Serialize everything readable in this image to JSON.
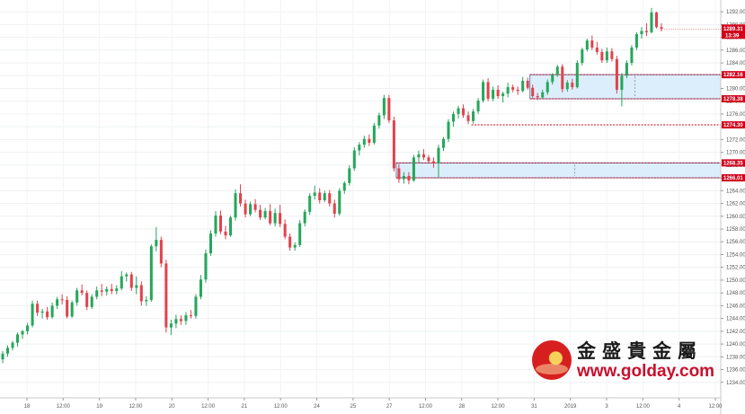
{
  "chart_data": {
    "type": "candlestick",
    "ylim": [
      1232,
      1293
    ],
    "y_ticks": [
      "1234.00",
      "1236.00",
      "1238.00",
      "1240.00",
      "1242.00",
      "1244.00",
      "1246.00",
      "1248.00",
      "1250.00",
      "1252.00",
      "1254.00",
      "1256.00",
      "1258.00",
      "1260.00",
      "1262.00",
      "1264.00",
      "1266.00",
      "1268.00",
      "1270.00",
      "1272.00",
      "1274.00",
      "1276.00",
      "1278.00",
      "1280.00",
      "1282.00",
      "1284.00",
      "1286.00",
      "1288.00",
      "1290.00",
      "1292.00"
    ],
    "x_ticks": [
      "18",
      "12:00",
      "19",
      "12:00",
      "20",
      "12:00",
      "21",
      "12:00",
      "24",
      "25",
      "27",
      "12:00",
      "28",
      "12:00",
      "31",
      "2019",
      "3",
      "12:00",
      "4",
      "12:00"
    ],
    "grid": true,
    "colors": {
      "up": "#26a65b",
      "down": "#e0434e",
      "zone_fill": "#dceefc",
      "zone_border": "#3c6e9e",
      "level_line": "#d0021b",
      "tag_red": "#d0021b",
      "tag_dark": "#7a1416"
    },
    "candles": [
      [
        1237.6,
        1238.9,
        1237.0,
        1238.5
      ],
      [
        1238.5,
        1239.8,
        1238.0,
        1239.4
      ],
      [
        1239.4,
        1240.5,
        1239.0,
        1240.2
      ],
      [
        1240.2,
        1241.8,
        1239.6,
        1241.5
      ],
      [
        1241.5,
        1242.2,
        1240.8,
        1242.0
      ],
      [
        1242.0,
        1243.3,
        1241.5,
        1242.9
      ],
      [
        1242.9,
        1246.8,
        1242.6,
        1246.3
      ],
      [
        1246.3,
        1246.8,
        1244.4,
        1244.9
      ],
      [
        1244.9,
        1245.5,
        1244.0,
        1245.1
      ],
      [
        1245.1,
        1245.8,
        1243.8,
        1244.2
      ],
      [
        1244.2,
        1246.5,
        1244.0,
        1246.0
      ],
      [
        1246.0,
        1247.4,
        1245.5,
        1247.0
      ],
      [
        1247.0,
        1247.8,
        1246.2,
        1246.9
      ],
      [
        1246.9,
        1247.5,
        1244.0,
        1244.3
      ],
      [
        1244.3,
        1246.8,
        1244.1,
        1246.5
      ],
      [
        1246.5,
        1248.8,
        1246.0,
        1248.4
      ],
      [
        1248.4,
        1249.3,
        1247.6,
        1248.0
      ],
      [
        1248.0,
        1248.4,
        1245.3,
        1245.8
      ],
      [
        1245.8,
        1247.8,
        1245.5,
        1247.4
      ],
      [
        1247.4,
        1249.0,
        1247.0,
        1248.4
      ],
      [
        1248.4,
        1249.4,
        1247.5,
        1248.2
      ],
      [
        1248.2,
        1249.0,
        1247.6,
        1248.6
      ],
      [
        1248.6,
        1249.4,
        1247.8,
        1248.3
      ],
      [
        1248.3,
        1249.2,
        1247.8,
        1248.7
      ],
      [
        1248.7,
        1251.4,
        1248.4,
        1250.6
      ],
      [
        1250.6,
        1251.2,
        1249.8,
        1250.9
      ],
      [
        1250.9,
        1251.3,
        1248.3,
        1248.8
      ],
      [
        1248.8,
        1250.6,
        1247.8,
        1249.2
      ],
      [
        1249.2,
        1249.8,
        1246.0,
        1246.7
      ],
      [
        1246.7,
        1247.5,
        1246.0,
        1246.9
      ],
      [
        1246.9,
        1255.6,
        1246.6,
        1255.3
      ],
      [
        1255.3,
        1258.3,
        1254.5,
        1256.3
      ],
      [
        1256.3,
        1256.8,
        1252.0,
        1252.6
      ],
      [
        1252.6,
        1253.2,
        1241.8,
        1242.6
      ],
      [
        1242.6,
        1243.8,
        1241.4,
        1243.2
      ],
      [
        1243.2,
        1244.6,
        1242.5,
        1243.9
      ],
      [
        1243.9,
        1244.5,
        1243.0,
        1243.6
      ],
      [
        1243.6,
        1245.0,
        1243.0,
        1244.5
      ],
      [
        1244.5,
        1245.3,
        1244.0,
        1244.4
      ],
      [
        1244.4,
        1247.8,
        1244.0,
        1247.4
      ],
      [
        1247.4,
        1250.8,
        1247.0,
        1250.1
      ],
      [
        1250.1,
        1254.8,
        1249.6,
        1254.2
      ],
      [
        1254.2,
        1257.8,
        1253.8,
        1257.3
      ],
      [
        1257.3,
        1260.8,
        1256.8,
        1260.1
      ],
      [
        1260.1,
        1260.9,
        1257.2,
        1257.6
      ],
      [
        1257.6,
        1258.5,
        1256.4,
        1257.0
      ],
      [
        1257.0,
        1260.1,
        1256.8,
        1259.8
      ],
      [
        1259.8,
        1264.2,
        1259.3,
        1263.6
      ],
      [
        1263.6,
        1265.0,
        1261.5,
        1262.0
      ],
      [
        1262.0,
        1262.6,
        1259.8,
        1260.3
      ],
      [
        1260.3,
        1262.3,
        1260.0,
        1261.9
      ],
      [
        1261.9,
        1262.7,
        1260.6,
        1261.0
      ],
      [
        1261.0,
        1261.8,
        1259.4,
        1259.8
      ],
      [
        1259.8,
        1261.3,
        1259.5,
        1260.8
      ],
      [
        1260.8,
        1261.9,
        1258.6,
        1258.9
      ],
      [
        1258.9,
        1261.2,
        1258.4,
        1260.5
      ],
      [
        1260.5,
        1261.8,
        1258.3,
        1258.8
      ],
      [
        1258.8,
        1259.5,
        1256.4,
        1256.8
      ],
      [
        1256.8,
        1257.3,
        1254.6,
        1255.1
      ],
      [
        1255.1,
        1255.9,
        1254.6,
        1255.5
      ],
      [
        1255.5,
        1259.4,
        1255.2,
        1258.9
      ],
      [
        1258.9,
        1261.1,
        1258.4,
        1260.7
      ],
      [
        1260.7,
        1263.6,
        1260.2,
        1263.2
      ],
      [
        1263.2,
        1264.8,
        1262.6,
        1263.7
      ],
      [
        1263.7,
        1264.4,
        1262.0,
        1262.5
      ],
      [
        1262.5,
        1264.0,
        1262.2,
        1263.6
      ],
      [
        1263.6,
        1264.1,
        1261.5,
        1262.0
      ],
      [
        1262.0,
        1262.6,
        1259.8,
        1260.4
      ],
      [
        1260.4,
        1264.4,
        1260.1,
        1264.0
      ],
      [
        1264.0,
        1265.5,
        1263.5,
        1265.2
      ],
      [
        1265.2,
        1268.0,
        1264.8,
        1267.5
      ],
      [
        1267.5,
        1270.8,
        1267.1,
        1270.3
      ],
      [
        1270.3,
        1271.6,
        1269.5,
        1271.2
      ],
      [
        1271.2,
        1272.6,
        1270.7,
        1272.1
      ],
      [
        1272.1,
        1272.8,
        1271.0,
        1271.5
      ],
      [
        1271.5,
        1274.6,
        1271.2,
        1274.2
      ],
      [
        1274.2,
        1276.2,
        1273.7,
        1275.8
      ],
      [
        1275.8,
        1279.0,
        1275.2,
        1278.5
      ],
      [
        1278.5,
        1279.0,
        1274.6,
        1275.0
      ],
      [
        1275.0,
        1275.6,
        1267.0,
        1267.5
      ],
      [
        1267.5,
        1268.2,
        1265.2,
        1265.8
      ],
      [
        1265.8,
        1266.9,
        1265.1,
        1266.3
      ],
      [
        1266.3,
        1266.9,
        1265.0,
        1265.6
      ],
      [
        1265.6,
        1269.6,
        1265.4,
        1269.2
      ],
      [
        1269.2,
        1270.3,
        1268.4,
        1269.7
      ],
      [
        1269.7,
        1270.5,
        1268.8,
        1269.2
      ],
      [
        1269.2,
        1269.6,
        1268.2,
        1268.6
      ],
      [
        1268.6,
        1269.2,
        1267.6,
        1268.3
      ],
      [
        1268.3,
        1271.2,
        1266.0,
        1270.7
      ],
      [
        1270.7,
        1272.4,
        1270.2,
        1272.1
      ],
      [
        1272.1,
        1275.2,
        1271.6,
        1274.8
      ],
      [
        1274.8,
        1276.4,
        1274.0,
        1276.0
      ],
      [
        1276.0,
        1277.3,
        1275.3,
        1276.9
      ],
      [
        1276.9,
        1277.5,
        1275.4,
        1275.8
      ],
      [
        1275.8,
        1276.4,
        1274.4,
        1274.9
      ],
      [
        1274.9,
        1276.8,
        1274.5,
        1276.4
      ],
      [
        1276.4,
        1278.5,
        1276.0,
        1278.1
      ],
      [
        1278.1,
        1281.4,
        1277.8,
        1281.0
      ],
      [
        1281.0,
        1281.6,
        1278.0,
        1278.4
      ],
      [
        1278.4,
        1280.3,
        1278.0,
        1279.8
      ],
      [
        1279.8,
        1280.5,
        1278.4,
        1278.8
      ],
      [
        1278.8,
        1279.5,
        1277.8,
        1279.2
      ],
      [
        1279.2,
        1280.9,
        1278.6,
        1280.2
      ],
      [
        1280.2,
        1280.6,
        1279.4,
        1279.8
      ],
      [
        1279.8,
        1280.3,
        1279.0,
        1279.6
      ],
      [
        1279.6,
        1281.8,
        1279.4,
        1281.2
      ],
      [
        1281.2,
        1281.7,
        1279.8,
        1280.1
      ],
      [
        1280.1,
        1280.6,
        1278.4,
        1278.8
      ],
      [
        1278.8,
        1279.3,
        1278.2,
        1278.6
      ],
      [
        1278.6,
        1279.8,
        1278.3,
        1279.4
      ],
      [
        1279.4,
        1281.4,
        1279.0,
        1281.0
      ],
      [
        1281.0,
        1282.4,
        1280.6,
        1282.1
      ],
      [
        1282.1,
        1283.7,
        1281.8,
        1283.4
      ],
      [
        1283.4,
        1283.8,
        1279.4,
        1279.9
      ],
      [
        1279.9,
        1281.3,
        1279.5,
        1280.9
      ],
      [
        1280.9,
        1281.5,
        1279.8,
        1280.2
      ],
      [
        1280.2,
        1284.4,
        1280.0,
        1284.0
      ],
      [
        1284.0,
        1286.4,
        1283.6,
        1286.1
      ],
      [
        1286.1,
        1287.8,
        1285.8,
        1287.5
      ],
      [
        1287.5,
        1288.3,
        1286.0,
        1286.4
      ],
      [
        1286.4,
        1287.3,
        1285.3,
        1285.7
      ],
      [
        1285.7,
        1286.2,
        1284.0,
        1284.4
      ],
      [
        1284.4,
        1286.4,
        1284.0,
        1285.8
      ],
      [
        1285.8,
        1286.3,
        1284.2,
        1284.6
      ],
      [
        1284.6,
        1285.1,
        1279.2,
        1279.8
      ],
      [
        1279.8,
        1282.4,
        1277.2,
        1282.0
      ],
      [
        1282.0,
        1284.4,
        1281.6,
        1284.0
      ],
      [
        1284.0,
        1286.8,
        1283.6,
        1286.4
      ],
      [
        1286.4,
        1288.8,
        1286.0,
        1288.5
      ],
      [
        1288.5,
        1289.6,
        1287.8,
        1289.0
      ],
      [
        1289.0,
        1290.2,
        1288.2,
        1288.8
      ],
      [
        1288.8,
        1292.6,
        1288.6,
        1291.9
      ],
      [
        1291.9,
        1292.0,
        1289.4,
        1289.6
      ],
      [
        1289.6,
        1290.2,
        1288.9,
        1289.3
      ]
    ],
    "zones": [
      {
        "from": 1278.38,
        "to": 1282.16
      },
      {
        "from": 1266.01,
        "to": 1268.35
      }
    ],
    "levels": [
      1274.3
    ],
    "current_price": "1289.31",
    "countdown": "13:39",
    "price_tags": [
      "1282.16",
      "1278.38",
      "1274.30",
      "1268.35",
      "1266.01"
    ]
  },
  "logo": {
    "name_cn": "金盛貴金屬",
    "url": "www.golday.com"
  }
}
